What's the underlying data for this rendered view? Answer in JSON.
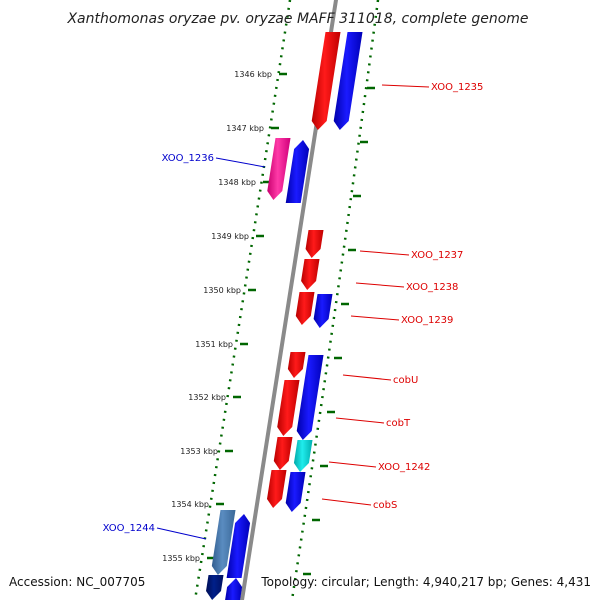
{
  "title": "Xanthomonas oryzae pv. oryzae MAFF 311018, complete genome",
  "accession": "Accession: NC_007705",
  "topology": "Topology: circular; Length: 4,940,217 bp; Genes: 4,431",
  "ticks": [
    "1346 kbp",
    "1347 kbp",
    "1348 kbp",
    "1349 kbp",
    "1350 kbp",
    "1351 kbp",
    "1352 kbp",
    "1353 kbp",
    "1354 kbp",
    "1355 kbp"
  ],
  "gene_labels": [
    {
      "text": "XOO_1235",
      "color": "#dd0000"
    },
    {
      "text": "XOO_1236",
      "color": "#0000cc"
    },
    {
      "text": "XOO_1237",
      "color": "#dd0000"
    },
    {
      "text": "XOO_1238",
      "color": "#dd0000"
    },
    {
      "text": "XOO_1239",
      "color": "#dd0000"
    },
    {
      "text": "cobU",
      "color": "#dd0000"
    },
    {
      "text": "cobT",
      "color": "#dd0000"
    },
    {
      "text": "XOO_1242",
      "color": "#dd0000"
    },
    {
      "text": "cobS",
      "color": "#dd0000"
    },
    {
      "text": "XOO_1244",
      "color": "#0000cc"
    }
  ],
  "colors": {
    "forward_gene": "#ff0000",
    "reverse_gene": "#0000ff",
    "highlight_pink": "#ff2a9a",
    "highlight_cyan": "#00d5d5",
    "steel_blue": "#4a7ab0",
    "navy": "#001a7a",
    "backbone": "#8a8a8a",
    "tick_track": "#006600"
  }
}
